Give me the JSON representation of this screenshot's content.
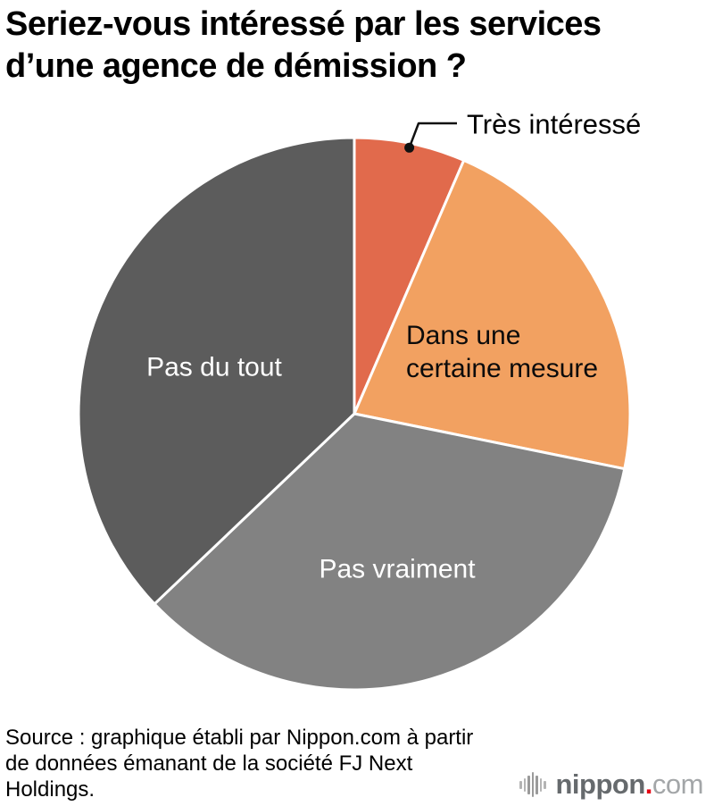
{
  "title": {
    "line1": "Seriez-vous intéressé par les services",
    "line2": "d’une agence de démission ?"
  },
  "chart_data": {
    "type": "pie",
    "title": "Seriez-vous intéressé par les services d’une agence de démission ?",
    "start_angle_deg": 0,
    "direction": "clockwise",
    "values_shown_on_chart": false,
    "slices": [
      {
        "label": "Très intéressé",
        "value_pct": 6.5,
        "color": "#e16a4c",
        "label_color": "#000000",
        "label_placement": "callout-outside-top"
      },
      {
        "label": "Dans une certaine mesure",
        "value_pct": 21.7,
        "color": "#f2a161",
        "label_color": "#0b0b0b",
        "label_placement": "inside"
      },
      {
        "label": "Pas vraiment",
        "value_pct": 34.7,
        "color": "#828282",
        "label_color": "#ffffff",
        "label_placement": "inside"
      },
      {
        "label": "Pas du tout",
        "value_pct": 37.1,
        "color": "#5c5c5c",
        "label_color": "#ffffff",
        "label_placement": "inside"
      }
    ],
    "legend": "none",
    "note": "values estimated from slice angles; no numeric labels shown in graphic"
  },
  "source": {
    "line1": "Source : graphique établi par Nippon.com à partir",
    "line2": "de données émanant de la société FJ Next",
    "line3": "Holdings."
  },
  "logo": {
    "name": "nippon",
    "dot": ".",
    "tld": "com",
    "dot_color": "#e60012"
  }
}
